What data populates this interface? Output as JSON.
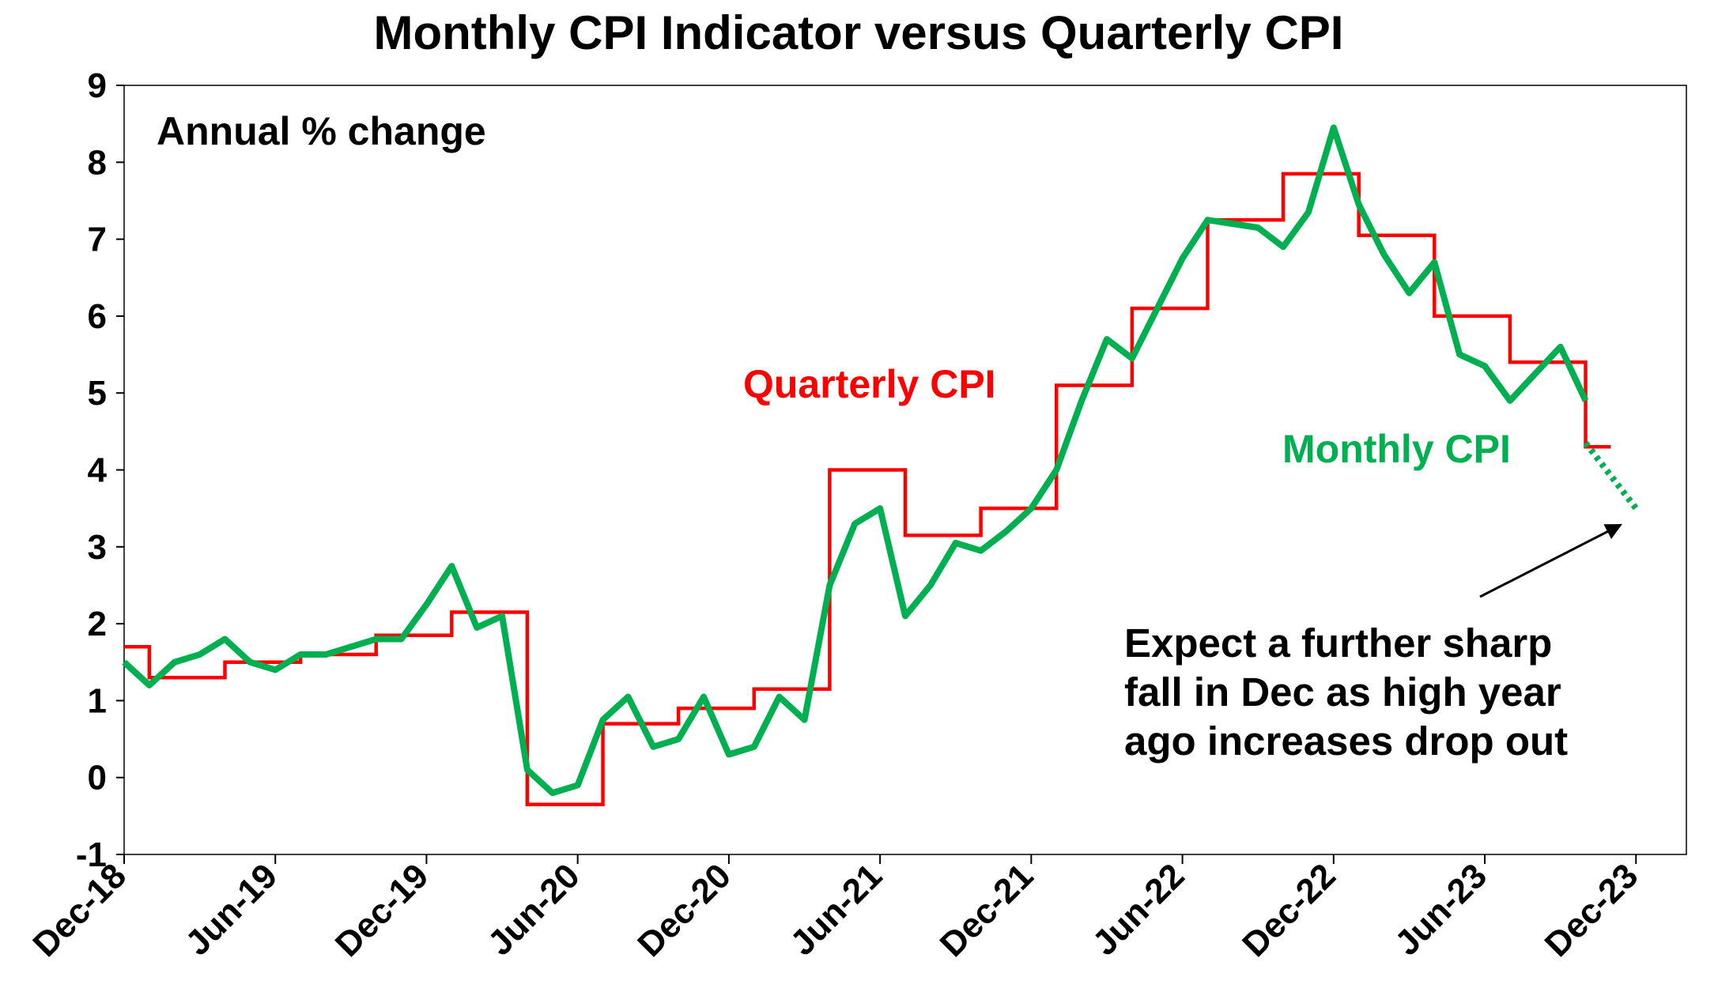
{
  "chart_data": {
    "type": "line",
    "title": "Monthly CPI Indicator versus Quarterly CPI",
    "ylabel": "Annual % change",
    "ylim": [
      -1,
      9
    ],
    "yticks": [
      "9",
      "8",
      "7",
      "6",
      "5",
      "4",
      "3",
      "2",
      "1",
      "0",
      "-1"
    ],
    "xticks": [
      "Dec-18",
      "Jun-19",
      "Dec-19",
      "Jun-20",
      "Dec-20",
      "Jun-21",
      "Dec-21",
      "Jun-22",
      "Dec-22",
      "Jun-23",
      "Dec-23"
    ],
    "xrange": [
      "Dec-18",
      "Feb-24"
    ],
    "grid": false,
    "series": [
      {
        "name": "Quarterly CPI",
        "color": "#ff0000",
        "style": "step",
        "x": [
          "Dec-18",
          "Jan-19",
          "Apr-19",
          "Jul-19",
          "Oct-19",
          "Jan-20",
          "Apr-20",
          "Jul-20",
          "Oct-20",
          "Jan-21",
          "Apr-21",
          "Jul-21",
          "Oct-21",
          "Jan-22",
          "Apr-22",
          "Jul-22",
          "Oct-22",
          "Jan-23",
          "Apr-23",
          "Jul-23",
          "Oct-23",
          "Nov-23"
        ],
        "values": [
          1.7,
          1.3,
          1.5,
          1.6,
          1.85,
          2.15,
          -0.35,
          0.7,
          0.9,
          1.15,
          4.0,
          3.15,
          3.5,
          5.1,
          6.1,
          7.25,
          7.85,
          7.05,
          6.0,
          5.4,
          4.3,
          4.3
        ]
      },
      {
        "name": "Monthly CPI",
        "color": "#00b050",
        "x": [
          "Dec-18",
          "Jan-19",
          "Feb-19",
          "Mar-19",
          "Apr-19",
          "May-19",
          "Jun-19",
          "Jul-19",
          "Aug-19",
          "Sep-19",
          "Oct-19",
          "Nov-19",
          "Dec-19",
          "Jan-20",
          "Feb-20",
          "Mar-20",
          "Apr-20",
          "May-20",
          "Jun-20",
          "Jul-20",
          "Aug-20",
          "Sep-20",
          "Oct-20",
          "Nov-20",
          "Dec-20",
          "Jan-21",
          "Feb-21",
          "Mar-21",
          "Apr-21",
          "May-21",
          "Jun-21",
          "Jul-21",
          "Aug-21",
          "Sep-21",
          "Oct-21",
          "Nov-21",
          "Dec-21",
          "Jan-22",
          "Feb-22",
          "Mar-22",
          "Apr-22",
          "May-22",
          "Jun-22",
          "Jul-22",
          "Aug-22",
          "Sep-22",
          "Oct-22",
          "Nov-22",
          "Dec-22",
          "Jan-23",
          "Feb-23",
          "Mar-23",
          "Apr-23",
          "May-23",
          "Jun-23",
          "Jul-23",
          "Aug-23",
          "Sep-23",
          "Oct-23"
        ],
        "values": [
          1.5,
          1.2,
          1.5,
          1.6,
          1.8,
          1.5,
          1.4,
          1.6,
          1.6,
          1.7,
          1.8,
          1.8,
          2.25,
          2.75,
          1.95,
          2.1,
          0.1,
          -0.2,
          -0.1,
          0.75,
          1.05,
          0.4,
          0.5,
          1.05,
          0.3,
          0.4,
          1.05,
          0.75,
          2.5,
          3.3,
          3.5,
          2.1,
          2.5,
          3.05,
          2.95,
          3.2,
          3.5,
          4.0,
          4.9,
          5.7,
          5.45,
          6.1,
          6.75,
          7.25,
          7.2,
          7.15,
          6.9,
          7.35,
          8.45,
          7.45,
          6.8,
          6.3,
          6.7,
          5.5,
          5.35,
          4.9,
          5.25,
          5.6,
          4.9
        ],
        "forecast": {
          "x": [
            "Oct-23",
            "Dec-23"
          ],
          "values": [
            4.35,
            3.5
          ]
        }
      }
    ],
    "annotations": [
      "Quarterly CPI",
      "Monthly CPI",
      "Expect a further sharp",
      "fall in Dec as high year",
      "ago increases drop out"
    ]
  }
}
